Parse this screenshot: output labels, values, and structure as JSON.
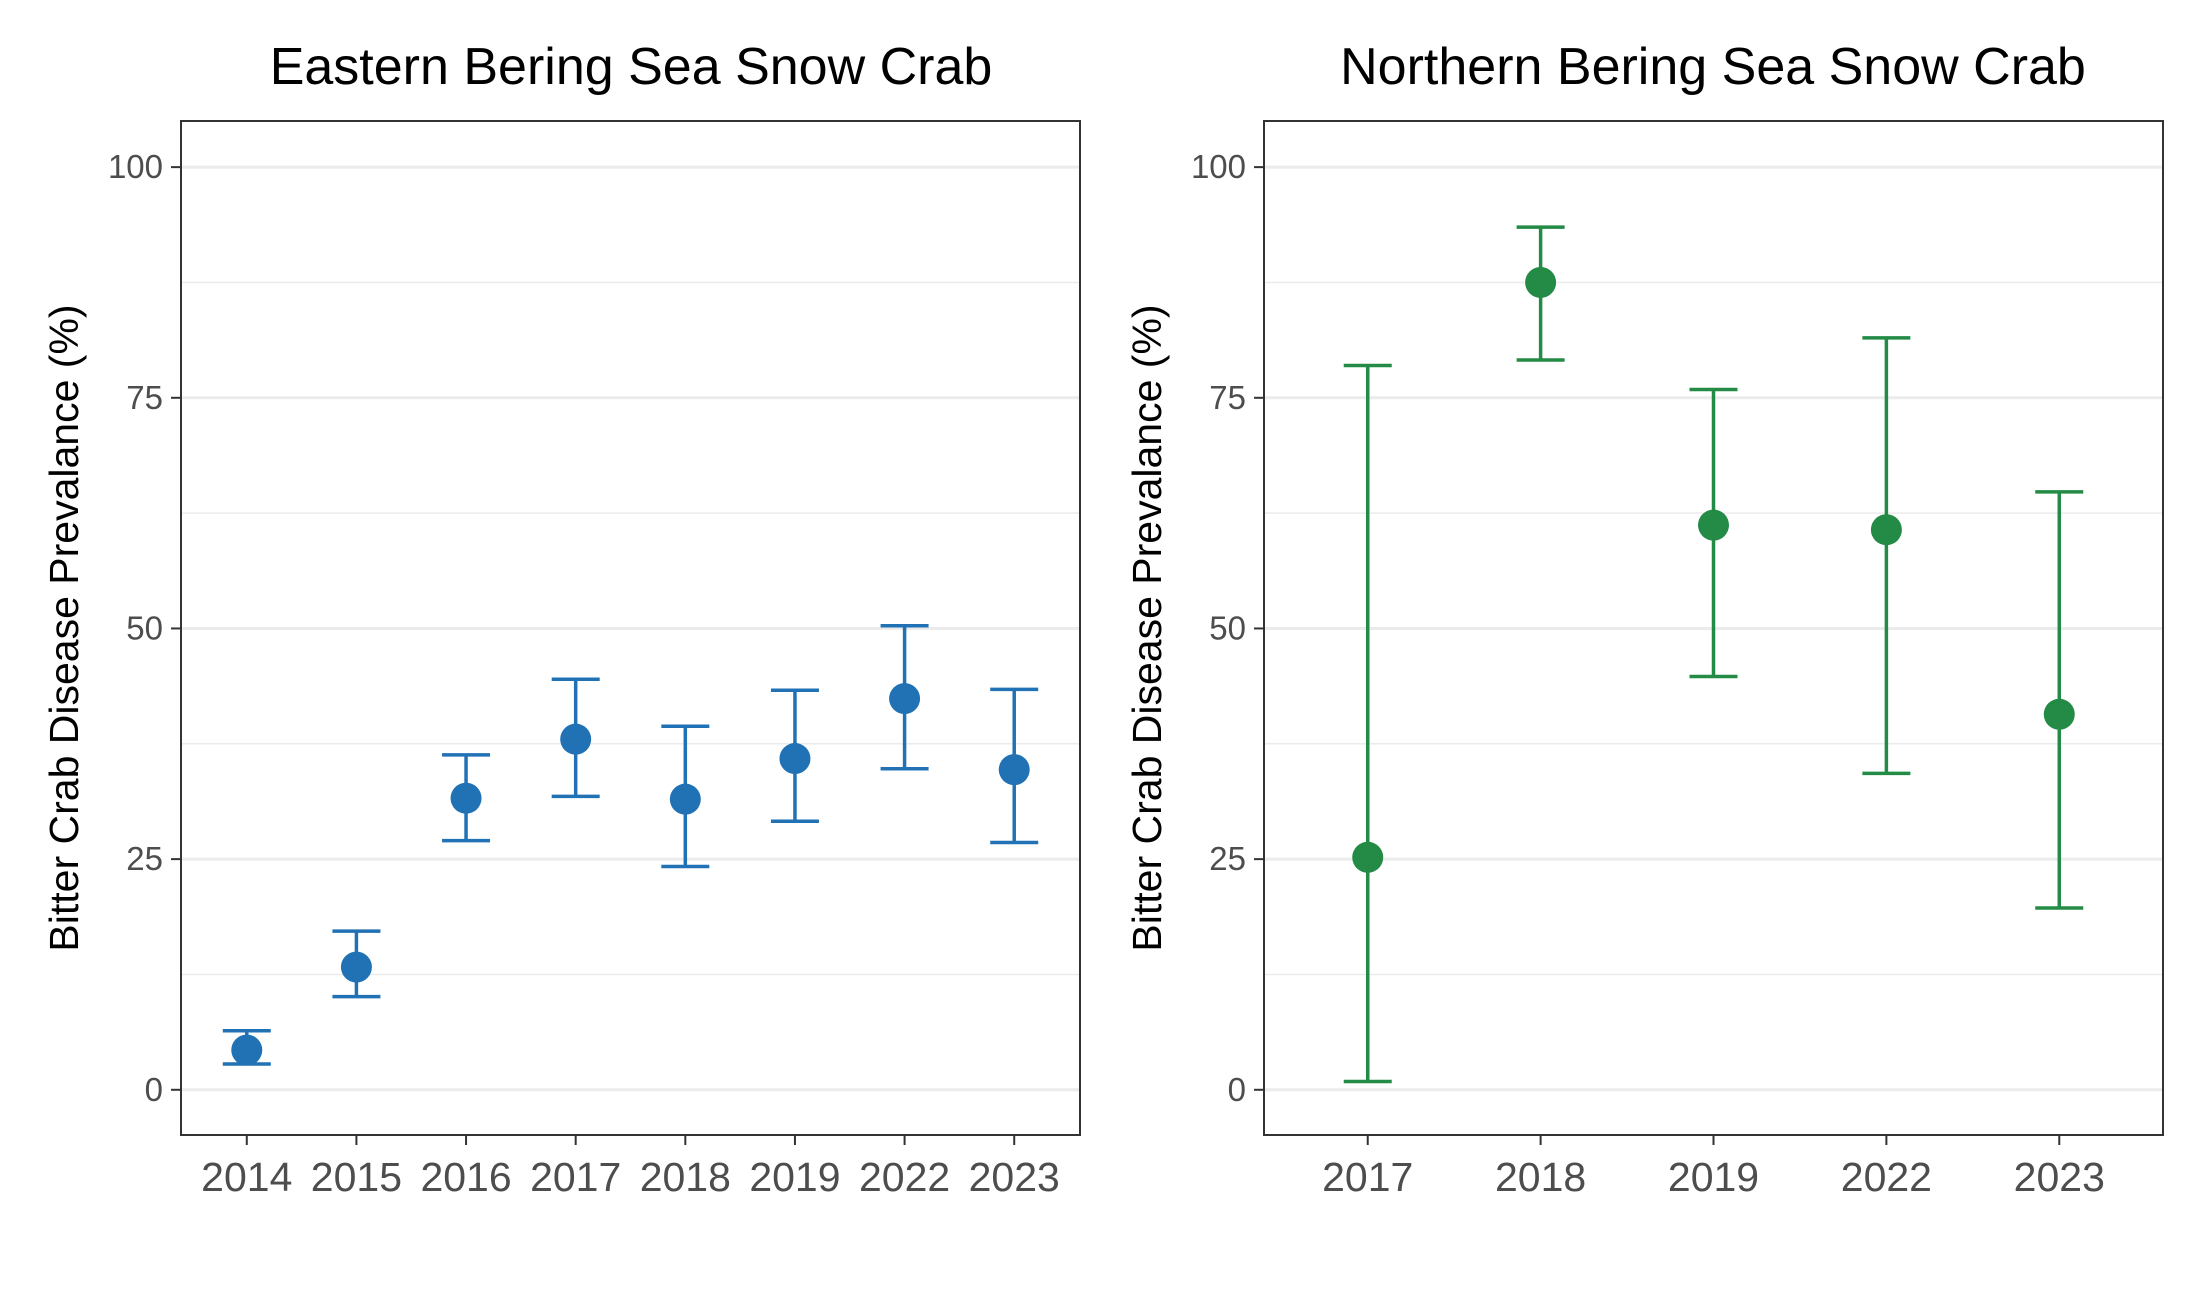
{
  "chart_data": [
    {
      "type": "scatter",
      "title": "Eastern Bering Sea Snow Crab",
      "xlabel": "",
      "ylabel": "Bitter Crab Disease Prevalance (%)",
      "categories": [
        "2014",
        "2015",
        "2016",
        "2017",
        "2018",
        "2019",
        "2022",
        "2023"
      ],
      "series": [
        {
          "values": [
            4.3,
            13.3,
            31.6,
            38.0,
            31.5,
            35.9,
            42.4,
            34.7
          ],
          "lower": [
            2.8,
            10.1,
            27.0,
            31.8,
            24.2,
            29.1,
            34.8,
            26.8
          ],
          "upper": [
            6.4,
            17.2,
            36.3,
            44.5,
            39.4,
            43.3,
            50.3,
            43.4
          ]
        }
      ],
      "ylim": [
        -4.9,
        105
      ],
      "yticks": [
        0,
        25,
        50,
        75,
        100
      ],
      "grid": true,
      "color": "#2171b5"
    },
    {
      "type": "scatter",
      "title": "Northern Bering Sea Snow Crab",
      "xlabel": "",
      "ylabel": "Bitter Crab Disease Prevalance (%)",
      "categories": [
        "2017",
        "2018",
        "2019",
        "2022",
        "2023"
      ],
      "series": [
        {
          "values": [
            25.2,
            87.5,
            61.2,
            60.7,
            40.7
          ],
          "lower": [
            0.9,
            79.1,
            44.8,
            34.3,
            19.7
          ],
          "upper": [
            78.5,
            93.5,
            75.9,
            81.5,
            64.8
          ]
        }
      ],
      "ylim": [
        -4.9,
        105
      ],
      "yticks": [
        0,
        25,
        50,
        75,
        100
      ],
      "grid": true,
      "color": "#238b45"
    }
  ]
}
